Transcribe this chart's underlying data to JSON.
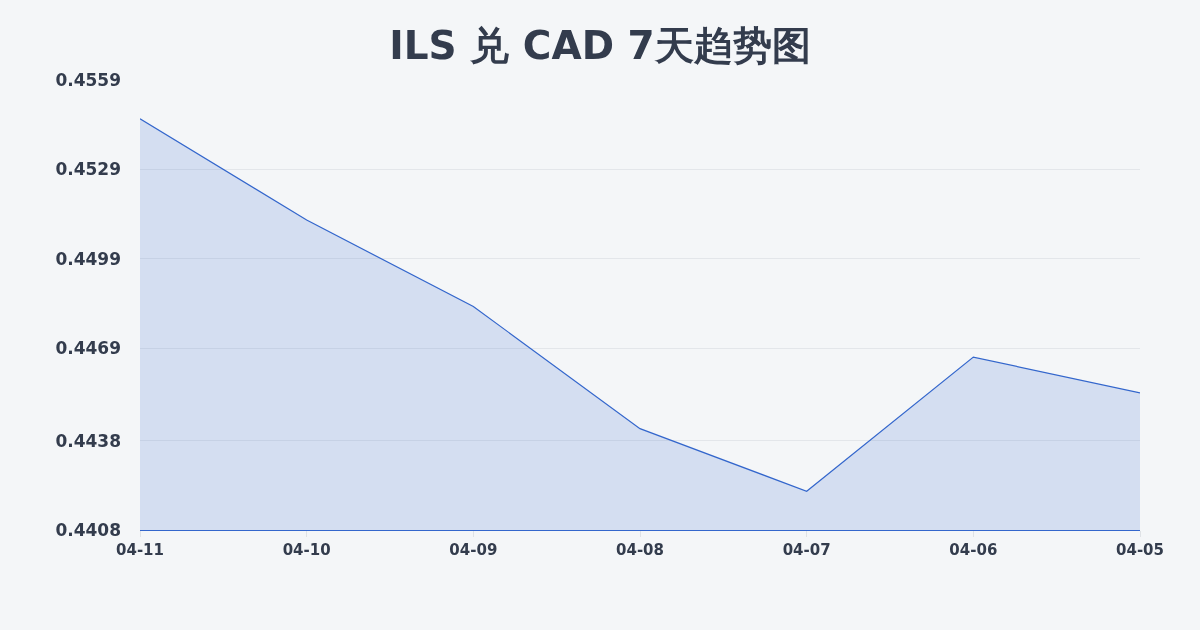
{
  "chart_data": {
    "type": "area",
    "title": "ILS 兑 CAD 7天趋势图",
    "categories": [
      "04-11",
      "04-10",
      "04-09",
      "04-08",
      "04-07",
      "04-06",
      "04-05"
    ],
    "series": [
      {
        "color": "#3366cc",
        "values": [
          0.4546,
          0.4512,
          0.4483,
          0.4442,
          0.4421,
          0.4466,
          0.4454
        ]
      }
    ],
    "ylim": [
      0.4408,
      0.4559
    ],
    "yticks": [
      0.4408,
      0.4438,
      0.4469,
      0.4499,
      0.4529,
      0.4559
    ],
    "grid": "y",
    "marker": "none",
    "line_style": "solid"
  }
}
